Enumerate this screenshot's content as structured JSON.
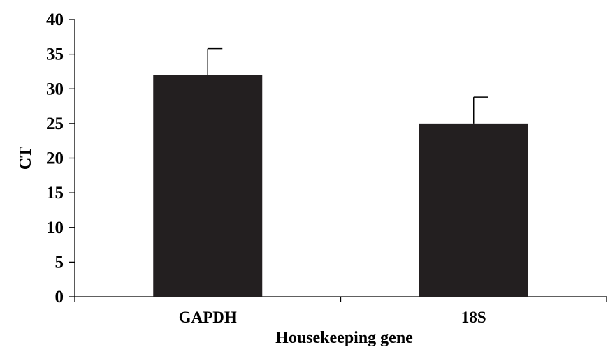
{
  "chart_data": {
    "type": "bar",
    "categories": [
      "GAPDH",
      "18S"
    ],
    "values": [
      32,
      25
    ],
    "error_plus": [
      3.8,
      3.8
    ],
    "xlabel": "Housekeeping gene",
    "ylabel": "CT",
    "ylim": [
      0,
      40
    ],
    "yticks": [
      0,
      5,
      10,
      15,
      20,
      25,
      30,
      35,
      40
    ],
    "grid": false,
    "legend": "none",
    "bar_color": "#231f20"
  }
}
